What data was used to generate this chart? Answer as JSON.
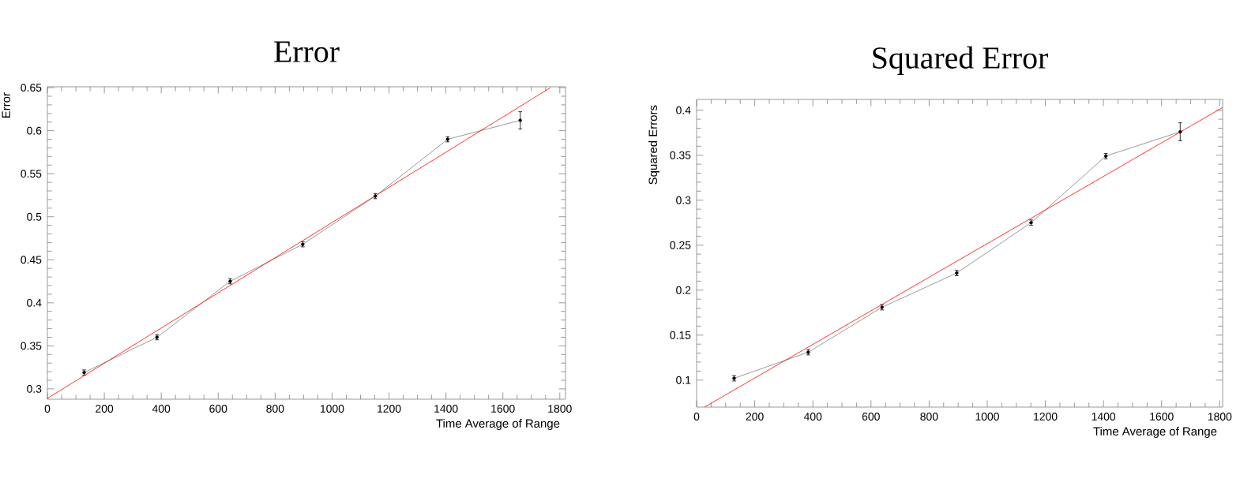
{
  "chart_data": [
    {
      "type": "line",
      "title": "Error",
      "xlabel": "Time Average of Range",
      "ylabel": "Error",
      "xlim": [
        0,
        1820
      ],
      "ylim": [
        0.288,
        0.651
      ],
      "xticks": [
        0,
        200,
        400,
        600,
        800,
        1000,
        1200,
        1400,
        1600,
        1800
      ],
      "yticks": [
        0.3,
        0.35,
        0.4,
        0.45,
        0.5,
        0.55,
        0.6,
        0.65
      ],
      "grid": false,
      "marker": "circle",
      "series": [
        {
          "color": "#808080",
          "x": [
            129,
            385,
            642,
            897,
            1152,
            1406,
            1661
          ],
          "values": [
            0.319,
            0.36,
            0.425,
            0.468,
            0.524,
            0.59,
            0.612
          ],
          "errors": [
            0.003,
            0.003,
            0.003,
            0.003,
            0.003,
            0.003,
            0.01
          ]
        },
        {
          "type": "line",
          "color": "#ff0000",
          "marker": "none",
          "x": [
            0,
            1767
          ],
          "values": [
            0.289,
            0.65
          ]
        }
      ]
    },
    {
      "type": "line",
      "title": "Squared Error",
      "xlabel": "Time Average of Range",
      "ylabel": "Squared Errors",
      "xlim": [
        0,
        1810
      ],
      "ylim": [
        0.07,
        0.412
      ],
      "xticks": [
        0,
        200,
        400,
        600,
        800,
        1000,
        1200,
        1400,
        1600,
        1800
      ],
      "yticks": [
        0.1,
        0.15,
        0.2,
        0.25,
        0.3,
        0.35,
        0.4
      ],
      "grid": false,
      "marker": "circle",
      "series": [
        {
          "color": "#808080",
          "x": [
            129,
            384,
            638,
            895,
            1151,
            1408,
            1664
          ],
          "values": [
            0.102,
            0.131,
            0.181,
            0.219,
            0.275,
            0.349,
            0.376
          ],
          "errors": [
            0.003,
            0.003,
            0.003,
            0.003,
            0.003,
            0.003,
            0.01
          ]
        },
        {
          "type": "line",
          "color": "#ff0000",
          "marker": "none",
          "x": [
            27,
            1810
          ],
          "values": [
            0.07,
            0.403
          ]
        }
      ]
    }
  ]
}
